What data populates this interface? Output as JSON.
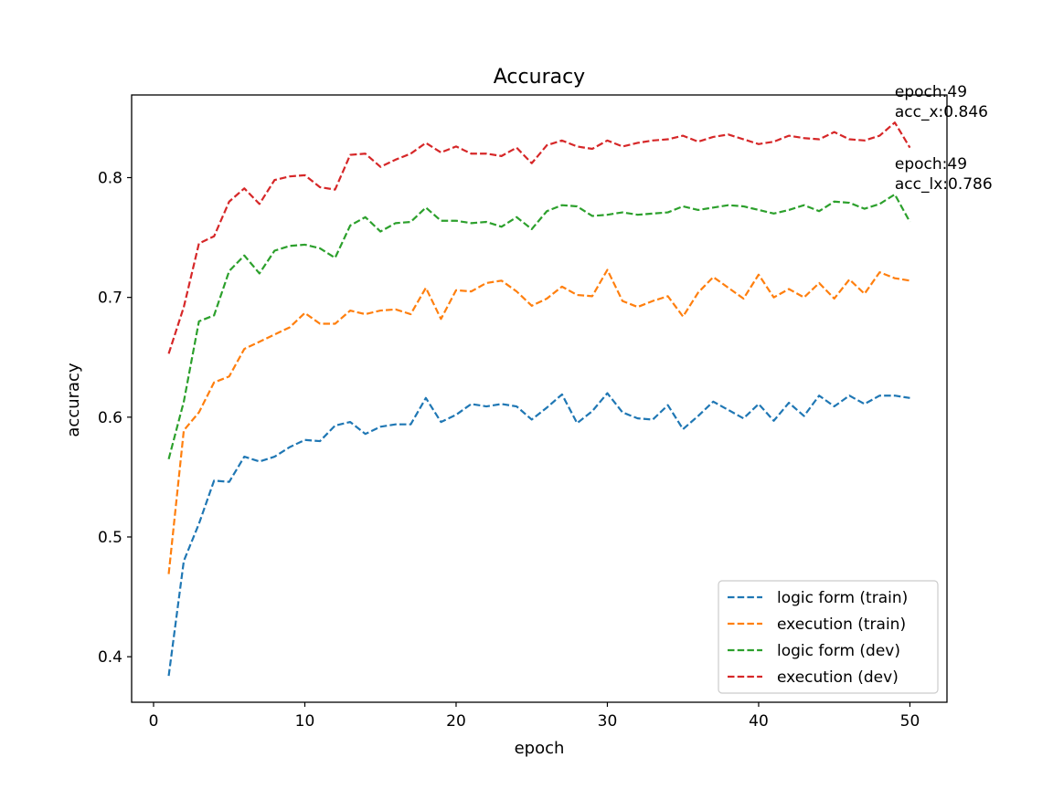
{
  "chart_data": {
    "type": "line",
    "title": "Accuracy",
    "xlabel": "epoch",
    "ylabel": "accuracy",
    "xlim": [
      -1.45,
      52.45
    ],
    "ylim": [
      0.362,
      0.869
    ],
    "xticks": [
      0,
      10,
      20,
      30,
      40,
      50
    ],
    "yticks": [
      0.4,
      0.5,
      0.6,
      0.7,
      0.8
    ],
    "xtick_labels": [
      "0",
      "10",
      "20",
      "30",
      "40",
      "50"
    ],
    "ytick_labels": [
      "0.4",
      "0.5",
      "0.6",
      "0.7",
      "0.8"
    ],
    "grid": false,
    "legend_position": "lower-right",
    "line_style": "dashed",
    "x": [
      1,
      2,
      3,
      4,
      5,
      6,
      7,
      8,
      9,
      10,
      11,
      12,
      13,
      14,
      15,
      16,
      17,
      18,
      19,
      20,
      21,
      22,
      23,
      24,
      25,
      26,
      27,
      28,
      29,
      30,
      31,
      32,
      33,
      34,
      35,
      36,
      37,
      38,
      39,
      40,
      41,
      42,
      43,
      44,
      45,
      46,
      47,
      48,
      49,
      50
    ],
    "series": [
      {
        "name": "logic form (train)",
        "color": "#1f77b4",
        "values": [
          0.384,
          0.48,
          0.511,
          0.547,
          0.546,
          0.567,
          0.563,
          0.567,
          0.575,
          0.581,
          0.58,
          0.593,
          0.596,
          0.586,
          0.592,
          0.594,
          0.594,
          0.616,
          0.596,
          0.602,
          0.611,
          0.609,
          0.611,
          0.609,
          0.598,
          0.608,
          0.619,
          0.595,
          0.605,
          0.62,
          0.604,
          0.599,
          0.598,
          0.61,
          0.59,
          0.601,
          0.613,
          0.606,
          0.599,
          0.611,
          0.597,
          0.612,
          0.601,
          0.618,
          0.609,
          0.618,
          0.611,
          0.618,
          0.618,
          0.616
        ]
      },
      {
        "name": "execution (train)",
        "color": "#ff7f0e",
        "values": [
          0.469,
          0.589,
          0.604,
          0.629,
          0.634,
          0.657,
          0.663,
          0.669,
          0.675,
          0.687,
          0.678,
          0.678,
          0.689,
          0.686,
          0.689,
          0.69,
          0.686,
          0.708,
          0.682,
          0.706,
          0.705,
          0.712,
          0.714,
          0.705,
          0.693,
          0.699,
          0.709,
          0.702,
          0.701,
          0.723,
          0.697,
          0.692,
          0.697,
          0.701,
          0.684,
          0.704,
          0.717,
          0.708,
          0.699,
          0.719,
          0.7,
          0.707,
          0.7,
          0.712,
          0.699,
          0.715,
          0.703,
          0.721,
          0.716,
          0.714
        ]
      },
      {
        "name": "logic form (dev)",
        "color": "#2ca02c",
        "values": [
          0.565,
          0.613,
          0.68,
          0.685,
          0.722,
          0.735,
          0.72,
          0.739,
          0.743,
          0.744,
          0.741,
          0.733,
          0.76,
          0.767,
          0.755,
          0.762,
          0.763,
          0.775,
          0.764,
          0.764,
          0.762,
          0.763,
          0.759,
          0.767,
          0.757,
          0.772,
          0.777,
          0.776,
          0.768,
          0.769,
          0.771,
          0.769,
          0.77,
          0.771,
          0.776,
          0.773,
          0.775,
          0.777,
          0.776,
          0.773,
          0.77,
          0.773,
          0.777,
          0.772,
          0.78,
          0.779,
          0.774,
          0.778,
          0.786,
          0.763
        ]
      },
      {
        "name": "execution (dev)",
        "color": "#d62728",
        "values": [
          0.653,
          0.692,
          0.745,
          0.751,
          0.78,
          0.791,
          0.778,
          0.798,
          0.801,
          0.802,
          0.792,
          0.79,
          0.819,
          0.82,
          0.809,
          0.815,
          0.82,
          0.829,
          0.821,
          0.826,
          0.82,
          0.82,
          0.818,
          0.825,
          0.812,
          0.827,
          0.831,
          0.826,
          0.824,
          0.831,
          0.826,
          0.829,
          0.831,
          0.832,
          0.835,
          0.83,
          0.834,
          0.836,
          0.832,
          0.828,
          0.83,
          0.835,
          0.833,
          0.832,
          0.838,
          0.832,
          0.831,
          0.835,
          0.846,
          0.825
        ]
      }
    ],
    "annotations": [
      {
        "lines": [
          "epoch:49",
          "acc_x:0.846"
        ],
        "x": 49,
        "y": 0.846
      },
      {
        "lines": [
          "epoch:49",
          "acc_lx:0.786"
        ],
        "x": 49,
        "y": 0.786
      }
    ]
  }
}
